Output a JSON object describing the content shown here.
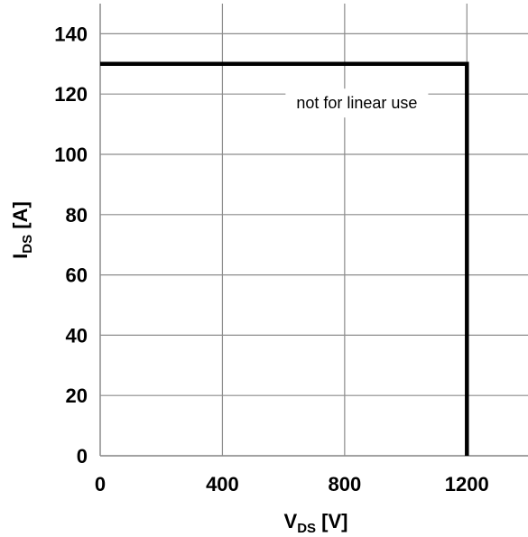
{
  "chart_data": {
    "type": "line",
    "title": "",
    "xlabel": {
      "main": "V",
      "sub": "DS",
      "unit": " [V]"
    },
    "ylabel": {
      "main": "I",
      "sub": "DS",
      "unit": " [A]"
    },
    "xlim": [
      0,
      1400
    ],
    "ylim": [
      0,
      150
    ],
    "xticks": [
      0,
      400,
      800,
      1200
    ],
    "yticks": [
      0,
      20,
      40,
      60,
      80,
      100,
      120,
      140
    ],
    "xgrid": [
      0,
      400,
      800,
      1200
    ],
    "ygrid": [
      0,
      20,
      40,
      60,
      80,
      100,
      120,
      140
    ],
    "grid": true,
    "series": [
      {
        "color": "#000000",
        "x": [
          0,
          1200,
          1200
        ],
        "y": [
          130,
          130,
          0
        ]
      }
    ],
    "annotations": [
      {
        "text": "not for linear use",
        "x": 840,
        "y": 117
      }
    ]
  }
}
